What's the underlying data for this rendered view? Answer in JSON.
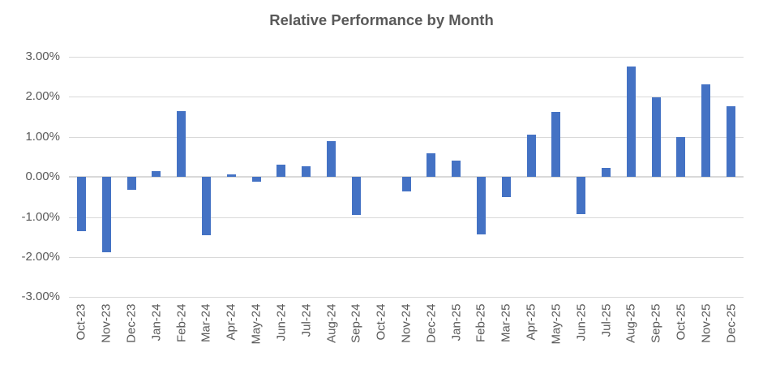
{
  "chart_data": {
    "type": "bar",
    "title": "Relative Performance by Month",
    "categories": [
      "Oct-23",
      "Nov-23",
      "Dec-23",
      "Jan-24",
      "Feb-24",
      "Mar-24",
      "Apr-24",
      "May-24",
      "Jun-24",
      "Jul-24",
      "Aug-24",
      "Sep-24",
      "Oct-24",
      "Nov-24",
      "Dec-24",
      "Jan-25",
      "Feb-25",
      "Mar-25",
      "Apr-25",
      "May-25",
      "Jun-25",
      "Jul-25",
      "Aug-25",
      "Sep-25",
      "Oct-25",
      "Nov-25",
      "Dec-25"
    ],
    "values": [
      -1.35,
      -1.88,
      -0.32,
      0.15,
      1.64,
      -1.46,
      0.06,
      -0.12,
      0.31,
      0.26,
      0.9,
      -0.95,
      0.0,
      -0.36,
      0.6,
      0.4,
      -1.44,
      -0.5,
      1.05,
      1.62,
      -0.93,
      0.22,
      2.76,
      1.98,
      1.0,
      2.32,
      1.76
    ],
    "value_unit": "percent",
    "xlabel": "",
    "ylabel": "",
    "ylim": [
      -3,
      3
    ],
    "ytick_labels": [
      "3.00%",
      "2.00%",
      "1.00%",
      "0.00%",
      "-1.00%",
      "-2.00%",
      "-3.00%"
    ],
    "ytick_values": [
      3,
      2,
      1,
      0,
      -1,
      -2,
      -3
    ],
    "grid": "horizontal",
    "legend_position": "none",
    "bar_color": "#4472C4",
    "gridline_color": "#D9D9D9",
    "axis_text_color": "#595959",
    "title_color": "#595959",
    "background_color": "#FFFFFF"
  }
}
